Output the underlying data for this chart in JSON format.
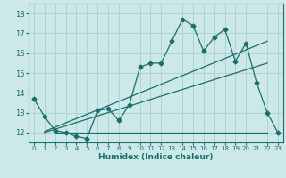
{
  "title": "",
  "xlabel": "Humidex (Indice chaleur)",
  "bg_color": "#cce8e8",
  "grid_color": "#aacfcf",
  "line_color": "#1a6e6a",
  "xlim": [
    -0.5,
    23.5
  ],
  "ylim": [
    11.5,
    18.5
  ],
  "xticks": [
    0,
    1,
    2,
    3,
    4,
    5,
    6,
    7,
    8,
    9,
    10,
    11,
    12,
    13,
    14,
    15,
    16,
    17,
    18,
    19,
    20,
    21,
    22,
    23
  ],
  "yticks": [
    12,
    13,
    14,
    15,
    16,
    17,
    18
  ],
  "scatter_x": [
    0,
    1,
    2,
    3,
    4,
    5,
    6,
    7,
    8,
    9,
    10,
    11,
    12,
    13,
    14,
    15,
    16,
    17,
    18,
    19,
    20,
    21,
    22,
    23
  ],
  "scatter_y": [
    13.7,
    12.8,
    12.1,
    12.0,
    11.8,
    11.7,
    13.1,
    13.2,
    12.6,
    13.4,
    15.3,
    15.5,
    15.5,
    16.6,
    17.7,
    17.4,
    16.1,
    16.8,
    17.2,
    15.6,
    16.5,
    14.5,
    13.0,
    12.0
  ],
  "hline_x": [
    2,
    22
  ],
  "hline_y": [
    12.0,
    12.0
  ],
  "trend1_x": [
    1,
    22
  ],
  "trend1_y": [
    12.05,
    16.6
  ],
  "trend2_x": [
    1,
    22
  ],
  "trend2_y": [
    12.0,
    15.5
  ]
}
